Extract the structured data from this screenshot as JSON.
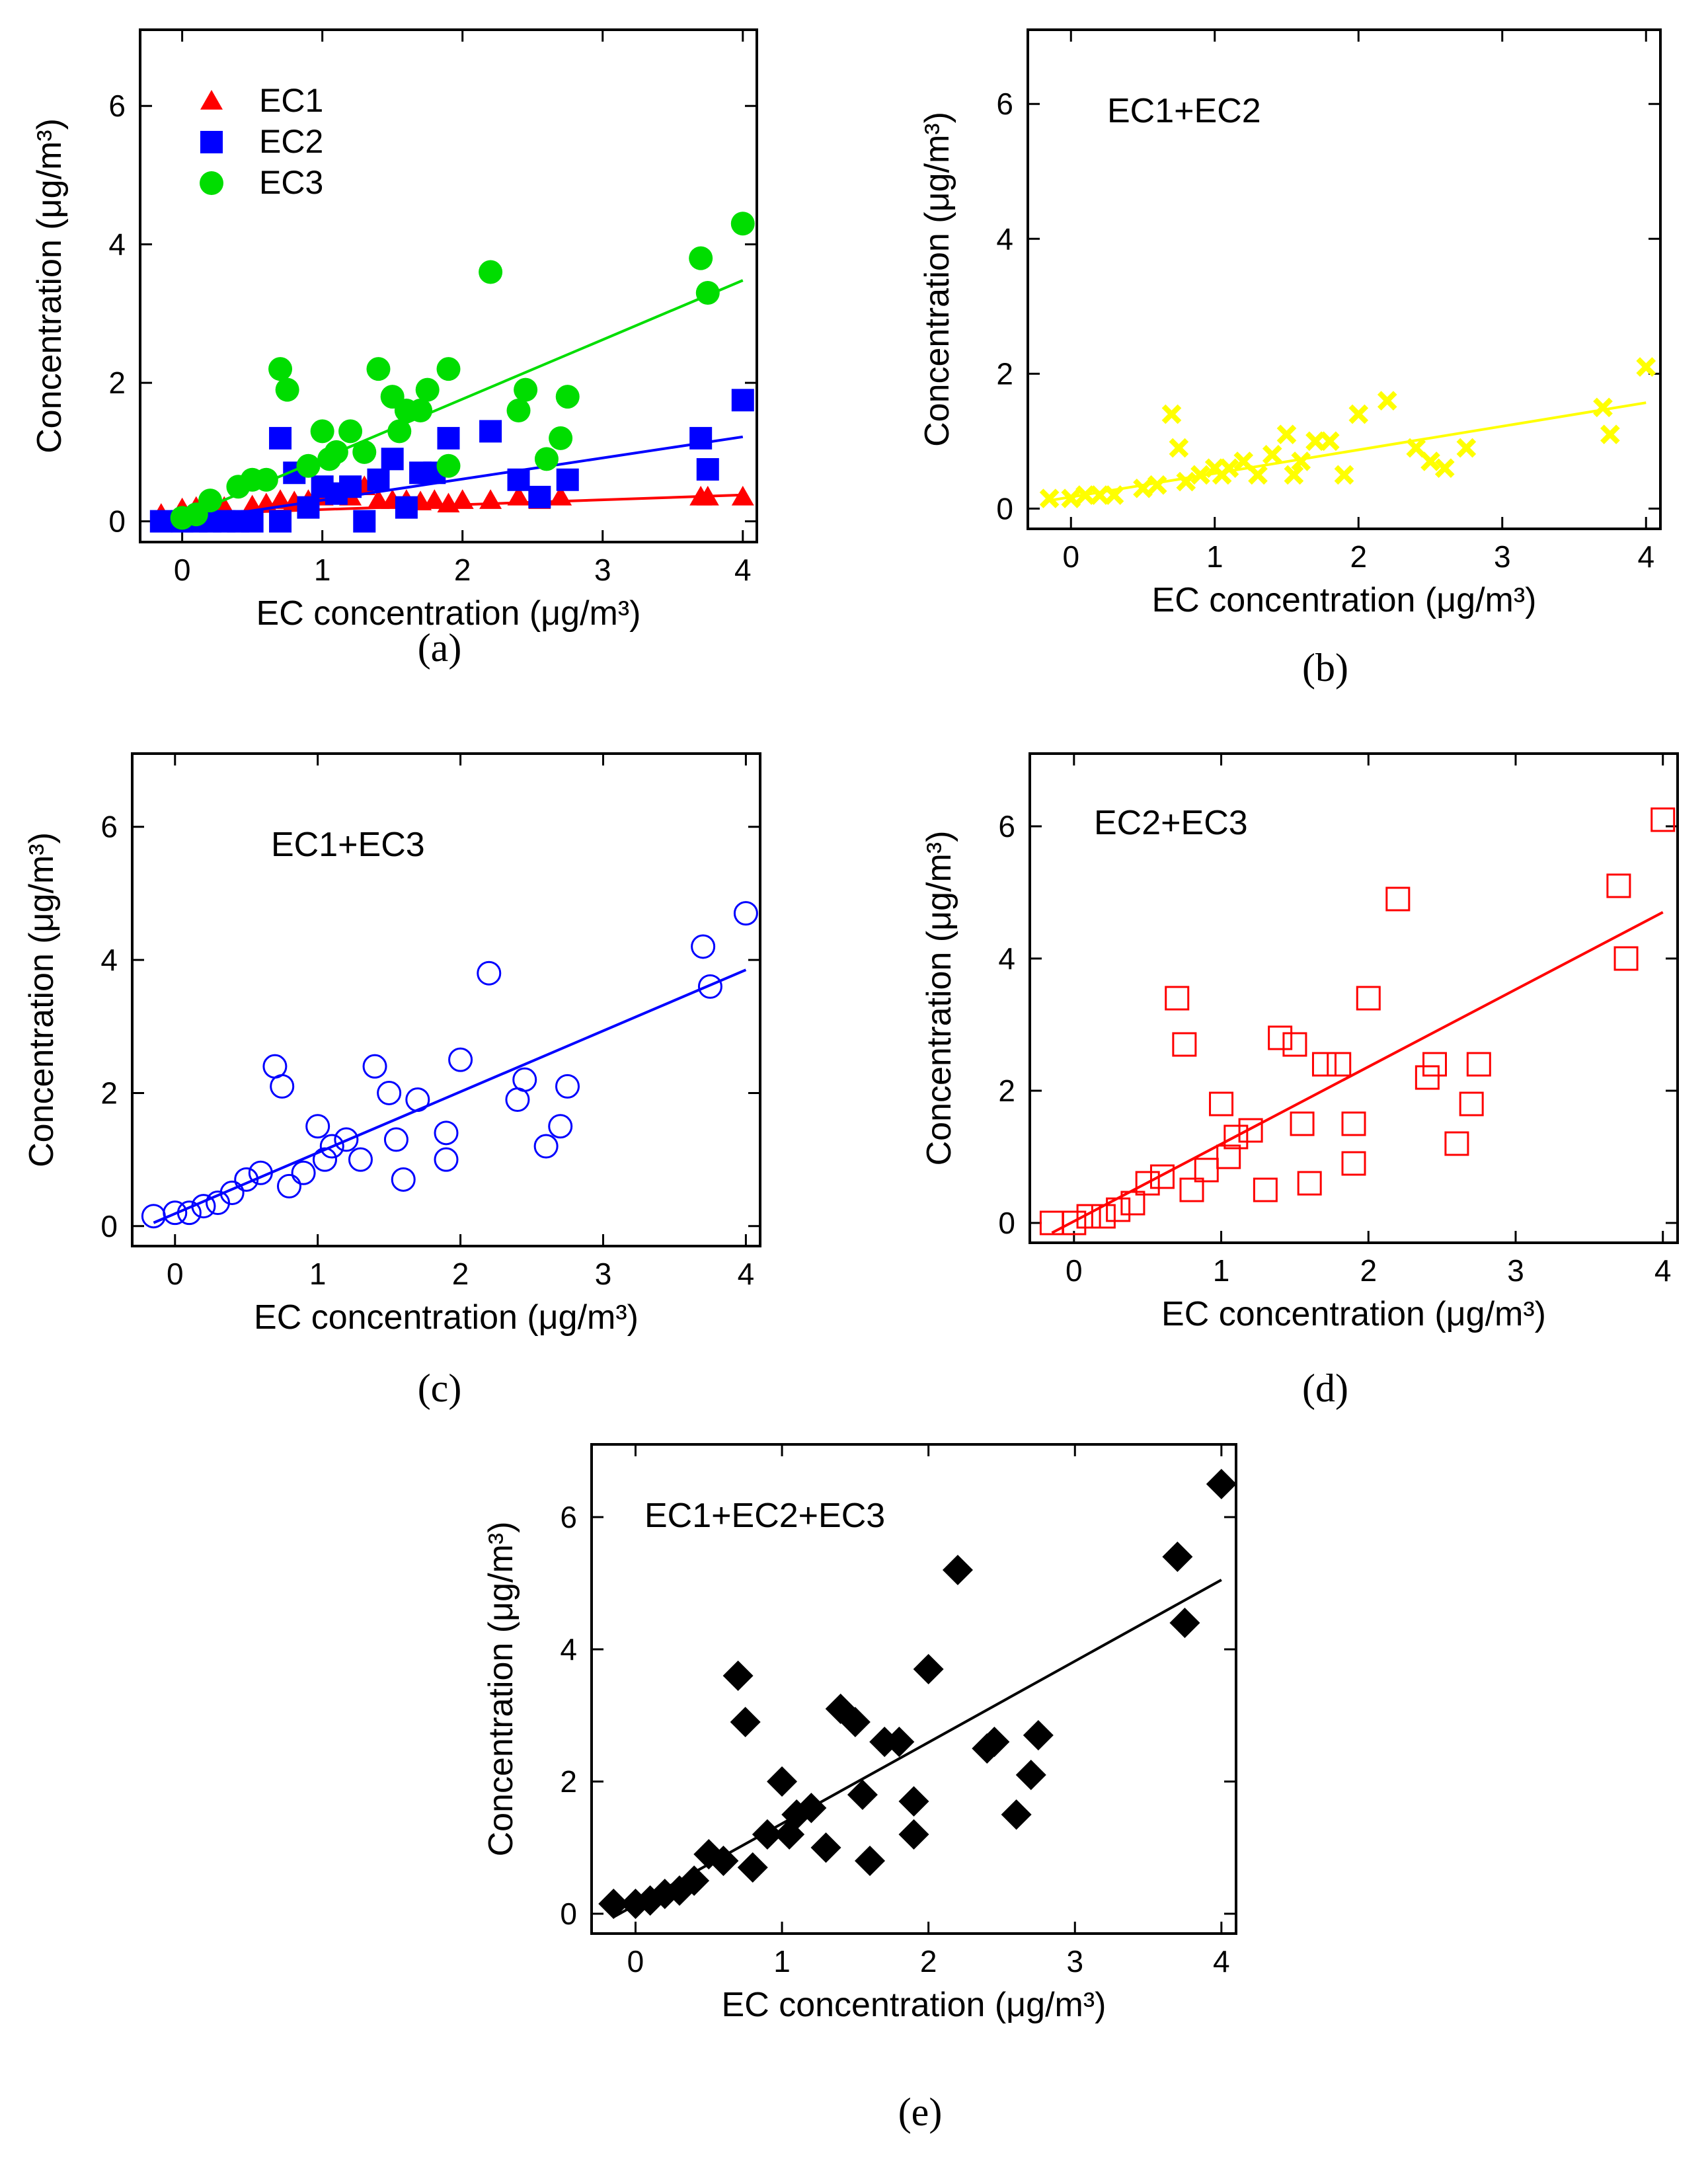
{
  "chart_data": [
    {
      "panel_label": "(a)",
      "type": "scatter",
      "xlabel": "EC concentration (μg/m³)",
      "ylabel": "Concentration (μg/m³)",
      "xlim": [
        -0.3,
        4.1
      ],
      "ylim": [
        -0.3,
        7.1
      ],
      "xticks": [
        0,
        1,
        2,
        3,
        4
      ],
      "yticks": [
        0,
        2,
        4,
        6
      ],
      "legend_position": "top-left",
      "series": [
        {
          "name": "EC1",
          "color": "#ff0000",
          "marker": "triangle",
          "points": [
            [
              -0.15,
              0.1
            ],
            [
              0.0,
              0.18
            ],
            [
              0.1,
              0.2
            ],
            [
              0.2,
              0.22
            ],
            [
              0.3,
              0.2
            ],
            [
              0.5,
              0.22
            ],
            [
              0.6,
              0.25
            ],
            [
              0.7,
              0.3
            ],
            [
              0.8,
              0.28
            ],
            [
              0.9,
              0.3
            ],
            [
              1.0,
              0.35
            ],
            [
              1.1,
              0.4
            ],
            [
              1.2,
              0.35
            ],
            [
              1.3,
              0.5
            ],
            [
              1.4,
              0.3
            ],
            [
              1.5,
              0.3
            ],
            [
              1.6,
              0.3
            ],
            [
              1.7,
              0.28
            ],
            [
              1.8,
              0.3
            ],
            [
              1.9,
              0.25
            ],
            [
              2.0,
              0.3
            ],
            [
              2.2,
              0.3
            ],
            [
              2.4,
              0.35
            ],
            [
              2.55,
              0.3
            ],
            [
              2.7,
              0.35
            ],
            [
              3.7,
              0.35
            ],
            [
              3.75,
              0.35
            ],
            [
              4.0,
              0.35
            ]
          ],
          "fit": [
            [
              0.0,
              0.1
            ],
            [
              4.0,
              0.38
            ]
          ]
        },
        {
          "name": "EC2",
          "color": "#0000ff",
          "marker": "square",
          "points": [
            [
              -0.15,
              0.0
            ],
            [
              0.0,
              0.0
            ],
            [
              0.1,
              0.0
            ],
            [
              0.2,
              0.0
            ],
            [
              0.3,
              0.0
            ],
            [
              0.4,
              0.0
            ],
            [
              0.5,
              0.0
            ],
            [
              0.7,
              0.0
            ],
            [
              0.7,
              1.2
            ],
            [
              0.8,
              0.7
            ],
            [
              0.9,
              0.2
            ],
            [
              1.0,
              0.5
            ],
            [
              1.1,
              0.4
            ],
            [
              1.2,
              0.5
            ],
            [
              1.3,
              0.0
            ],
            [
              1.4,
              0.6
            ],
            [
              1.5,
              0.9
            ],
            [
              1.6,
              0.2
            ],
            [
              1.7,
              0.7
            ],
            [
              1.8,
              0.7
            ],
            [
              1.9,
              1.2
            ],
            [
              2.2,
              1.3
            ],
            [
              2.4,
              0.6
            ],
            [
              2.55,
              0.35
            ],
            [
              2.75,
              0.6
            ],
            [
              3.7,
              1.2
            ],
            [
              3.75,
              0.75
            ],
            [
              4.0,
              1.75
            ]
          ],
          "fit": [
            [
              0.0,
              0.0
            ],
            [
              4.0,
              1.22
            ]
          ]
        },
        {
          "name": "EC3",
          "color": "#00dd00",
          "marker": "circle",
          "points": [
            [
              0.0,
              0.05
            ],
            [
              0.1,
              0.1
            ],
            [
              0.2,
              0.3
            ],
            [
              0.4,
              0.5
            ],
            [
              0.5,
              0.6
            ],
            [
              0.6,
              0.6
            ],
            [
              0.7,
              2.2
            ],
            [
              0.75,
              1.9
            ],
            [
              0.9,
              0.8
            ],
            [
              1.0,
              1.3
            ],
            [
              1.05,
              0.9
            ],
            [
              1.1,
              1.0
            ],
            [
              1.2,
              1.3
            ],
            [
              1.3,
              1.0
            ],
            [
              1.4,
              2.2
            ],
            [
              1.5,
              1.8
            ],
            [
              1.55,
              1.3
            ],
            [
              1.6,
              1.6
            ],
            [
              1.7,
              1.6
            ],
            [
              1.75,
              1.9
            ],
            [
              1.9,
              0.8
            ],
            [
              1.9,
              2.2
            ],
            [
              2.2,
              3.6
            ],
            [
              2.4,
              1.6
            ],
            [
              2.45,
              1.9
            ],
            [
              2.6,
              0.9
            ],
            [
              2.7,
              1.2
            ],
            [
              2.75,
              1.8
            ],
            [
              3.7,
              3.8
            ],
            [
              3.75,
              3.3
            ],
            [
              4.0,
              4.3
            ]
          ],
          "fit": [
            [
              0.0,
              0.05
            ],
            [
              4.0,
              3.48
            ]
          ]
        }
      ]
    },
    {
      "panel_label": "(b)",
      "type": "scatter",
      "inset_label": "EC1+EC2",
      "xlabel": "EC concentration (μg/m³)",
      "ylabel": "Concentration (μg/m³)",
      "xlim": [
        -0.3,
        4.1
      ],
      "ylim": [
        -0.3,
        7.1
      ],
      "xticks": [
        0,
        1,
        2,
        3,
        4
      ],
      "yticks": [
        0,
        2,
        4,
        6
      ],
      "series": [
        {
          "name": "EC1+EC2",
          "color": "#ffff00",
          "marker": "x",
          "points": [
            [
              -0.15,
              0.15
            ],
            [
              0.0,
              0.15
            ],
            [
              0.1,
              0.2
            ],
            [
              0.2,
              0.2
            ],
            [
              0.3,
              0.2
            ],
            [
              0.5,
              0.3
            ],
            [
              0.6,
              0.35
            ],
            [
              0.7,
              1.4
            ],
            [
              0.75,
              0.9
            ],
            [
              0.8,
              0.4
            ],
            [
              0.9,
              0.5
            ],
            [
              1.0,
              0.6
            ],
            [
              1.05,
              0.5
            ],
            [
              1.1,
              0.6
            ],
            [
              1.2,
              0.7
            ],
            [
              1.3,
              0.5
            ],
            [
              1.4,
              0.8
            ],
            [
              1.5,
              1.1
            ],
            [
              1.55,
              0.5
            ],
            [
              1.6,
              0.7
            ],
            [
              1.7,
              1.0
            ],
            [
              1.8,
              1.0
            ],
            [
              1.9,
              0.5
            ],
            [
              2.0,
              1.4
            ],
            [
              2.2,
              1.6
            ],
            [
              2.4,
              0.9
            ],
            [
              2.5,
              0.7
            ],
            [
              2.6,
              0.6
            ],
            [
              2.75,
              0.9
            ],
            [
              3.7,
              1.5
            ],
            [
              3.75,
              1.1
            ],
            [
              4.0,
              2.1
            ]
          ],
          "fit": [
            [
              -0.15,
              0.12
            ],
            [
              4.0,
              1.57
            ]
          ]
        }
      ]
    },
    {
      "panel_label": "(c)",
      "type": "scatter",
      "inset_label": "EC1+EC3",
      "xlabel": "EC concentration (μg/m³)",
      "ylabel": "Concentration (μg/m³)",
      "xlim": [
        -0.3,
        4.1
      ],
      "ylim": [
        -0.3,
        7.1
      ],
      "xticks": [
        0,
        1,
        2,
        3,
        4
      ],
      "yticks": [
        0,
        2,
        4,
        6
      ],
      "series": [
        {
          "name": "EC1+EC3",
          "color": "#0000ff",
          "marker": "open-circle",
          "points": [
            [
              -0.15,
              0.15
            ],
            [
              0.0,
              0.2
            ],
            [
              0.1,
              0.2
            ],
            [
              0.2,
              0.3
            ],
            [
              0.3,
              0.35
            ],
            [
              0.4,
              0.5
            ],
            [
              0.5,
              0.7
            ],
            [
              0.6,
              0.8
            ],
            [
              0.7,
              2.4
            ],
            [
              0.75,
              2.1
            ],
            [
              0.8,
              0.6
            ],
            [
              0.9,
              0.8
            ],
            [
              1.0,
              1.5
            ],
            [
              1.05,
              1.0
            ],
            [
              1.1,
              1.2
            ],
            [
              1.2,
              1.3
            ],
            [
              1.3,
              1.0
            ],
            [
              1.4,
              2.4
            ],
            [
              1.5,
              2.0
            ],
            [
              1.55,
              1.3
            ],
            [
              1.6,
              0.7
            ],
            [
              1.7,
              1.9
            ],
            [
              1.9,
              1.0
            ],
            [
              1.9,
              1.4
            ],
            [
              2.0,
              2.5
            ],
            [
              2.2,
              3.8
            ],
            [
              2.4,
              1.9
            ],
            [
              2.45,
              2.2
            ],
            [
              2.6,
              1.2
            ],
            [
              2.7,
              1.5
            ],
            [
              2.75,
              2.1
            ],
            [
              3.7,
              4.2
            ],
            [
              3.75,
              3.6
            ],
            [
              4.0,
              4.7
            ]
          ],
          "fit": [
            [
              -0.15,
              0.05
            ],
            [
              4.0,
              3.85
            ]
          ]
        }
      ]
    },
    {
      "panel_label": "(d)",
      "type": "scatter",
      "inset_label": "EC2+EC3",
      "xlabel": "EC concentration (μg/m³)",
      "ylabel": "Concentration (μg/m³)",
      "xlim": [
        -0.3,
        4.1
      ],
      "ylim": [
        -0.3,
        7.1
      ],
      "xticks": [
        0,
        1,
        2,
        3,
        4
      ],
      "yticks": [
        0,
        2,
        4,
        6
      ],
      "series": [
        {
          "name": "EC2+EC3",
          "color": "#ff0000",
          "marker": "open-square",
          "points": [
            [
              -0.15,
              0.0
            ],
            [
              0.0,
              0.0
            ],
            [
              0.1,
              0.1
            ],
            [
              0.2,
              0.1
            ],
            [
              0.3,
              0.2
            ],
            [
              0.4,
              0.3
            ],
            [
              0.5,
              0.6
            ],
            [
              0.6,
              0.7
            ],
            [
              0.7,
              3.4
            ],
            [
              0.75,
              2.7
            ],
            [
              0.8,
              0.5
            ],
            [
              0.9,
              0.8
            ],
            [
              1.0,
              1.8
            ],
            [
              1.05,
              1.0
            ],
            [
              1.1,
              1.3
            ],
            [
              1.2,
              1.4
            ],
            [
              1.3,
              0.5
            ],
            [
              1.4,
              2.8
            ],
            [
              1.5,
              2.7
            ],
            [
              1.55,
              1.5
            ],
            [
              1.6,
              0.6
            ],
            [
              1.7,
              2.4
            ],
            [
              1.8,
              2.4
            ],
            [
              1.9,
              0.9
            ],
            [
              1.9,
              1.5
            ],
            [
              2.0,
              3.4
            ],
            [
              2.2,
              4.9
            ],
            [
              2.4,
              2.2
            ],
            [
              2.45,
              2.4
            ],
            [
              2.6,
              1.2
            ],
            [
              2.7,
              1.8
            ],
            [
              2.75,
              2.4
            ],
            [
              3.7,
              5.1
            ],
            [
              3.75,
              4.0
            ],
            [
              4.0,
              6.1
            ]
          ],
          "fit": [
            [
              -0.15,
              -0.15
            ],
            [
              4.0,
              4.7
            ]
          ]
        }
      ]
    },
    {
      "panel_label": "(e)",
      "type": "scatter",
      "inset_label": "EC1+EC2+EC3",
      "xlabel": "EC concentration (μg/m³)",
      "ylabel": "Concentration (μg/m³)",
      "xlim": [
        -0.3,
        4.1
      ],
      "ylim": [
        -0.3,
        7.1
      ],
      "xticks": [
        0,
        1,
        2,
        3,
        4
      ],
      "yticks": [
        0,
        2,
        4,
        6
      ],
      "series": [
        {
          "name": "EC1+EC2+EC3",
          "color": "#000000",
          "marker": "diamond",
          "points": [
            [
              -0.15,
              0.15
            ],
            [
              0.0,
              0.15
            ],
            [
              0.1,
              0.2
            ],
            [
              0.2,
              0.3
            ],
            [
              0.3,
              0.35
            ],
            [
              0.4,
              0.5
            ],
            [
              0.5,
              0.9
            ],
            [
              0.6,
              0.8
            ],
            [
              0.7,
              3.6
            ],
            [
              0.75,
              2.9
            ],
            [
              0.8,
              0.7
            ],
            [
              0.9,
              1.2
            ],
            [
              1.0,
              2.0
            ],
            [
              1.05,
              1.2
            ],
            [
              1.1,
              1.5
            ],
            [
              1.2,
              1.6
            ],
            [
              1.3,
              1.0
            ],
            [
              1.4,
              3.1
            ],
            [
              1.5,
              2.9
            ],
            [
              1.55,
              1.8
            ],
            [
              1.6,
              0.8
            ],
            [
              1.7,
              2.6
            ],
            [
              1.8,
              2.6
            ],
            [
              1.9,
              1.2
            ],
            [
              1.9,
              1.7
            ],
            [
              2.0,
              3.7
            ],
            [
              2.2,
              5.2
            ],
            [
              2.4,
              2.5
            ],
            [
              2.45,
              2.6
            ],
            [
              2.6,
              1.5
            ],
            [
              2.7,
              2.1
            ],
            [
              2.75,
              2.7
            ],
            [
              3.7,
              5.4
            ],
            [
              3.75,
              4.4
            ],
            [
              4.0,
              6.5
            ]
          ],
          "fit": [
            [
              -0.15,
              -0.05
            ],
            [
              4.0,
              5.05
            ]
          ]
        }
      ]
    }
  ]
}
